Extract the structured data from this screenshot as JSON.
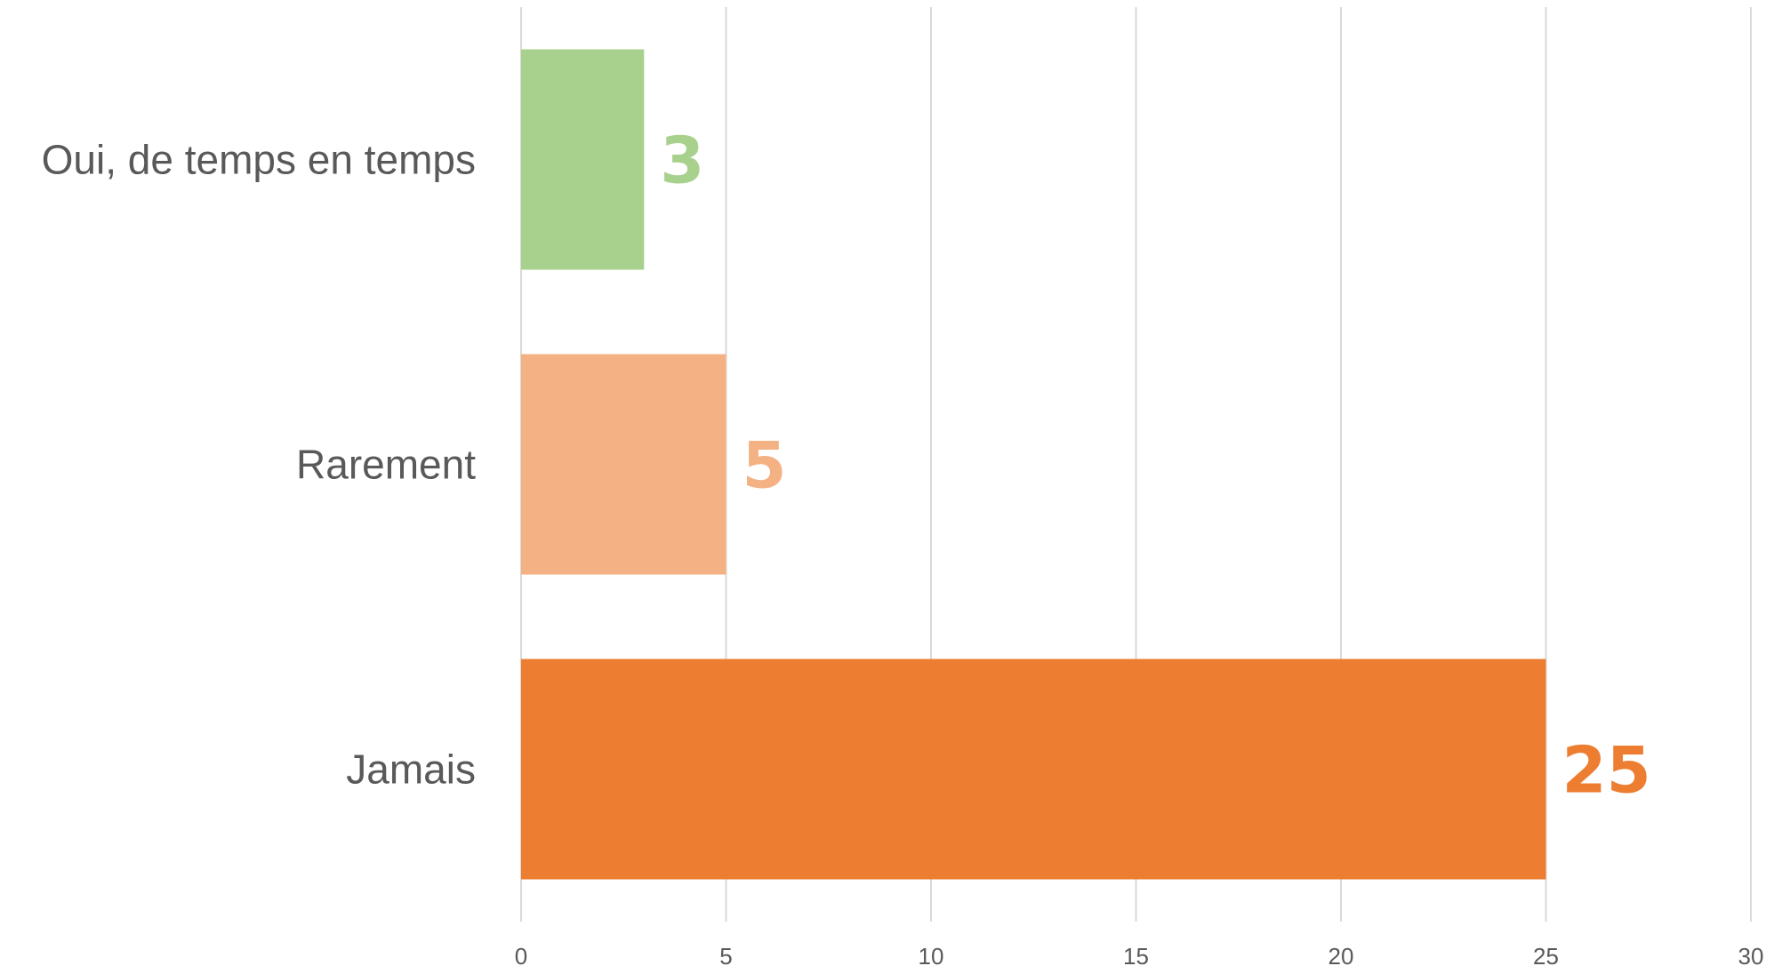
{
  "chart_data": {
    "type": "bar",
    "orientation": "horizontal",
    "categories": [
      "Oui, de temps en temps",
      "Rarement",
      "Jamais"
    ],
    "values": [
      3,
      5,
      25
    ],
    "data_labels": [
      "3",
      "5",
      "25"
    ],
    "colors": [
      "#a9d18e",
      "#f4b183",
      "#ed7d31"
    ],
    "xlim": [
      0,
      30
    ],
    "x_ticks": [
      0,
      5,
      10,
      15,
      20,
      25,
      30
    ],
    "x_tick_labels": [
      "0",
      "5",
      "10",
      "15",
      "20",
      "25",
      "30"
    ],
    "grid": true,
    "legend": "none"
  }
}
